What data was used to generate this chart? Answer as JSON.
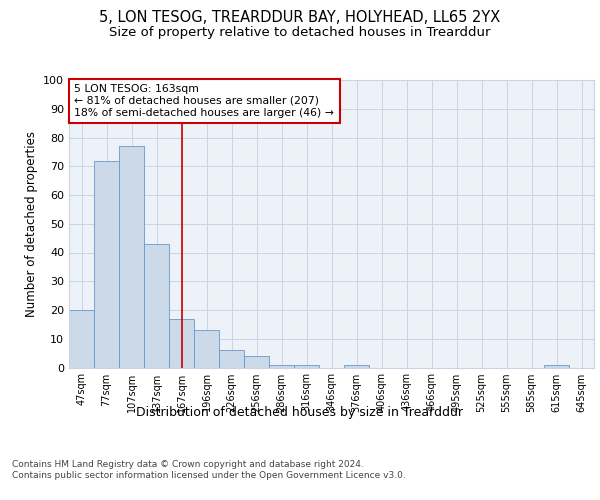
{
  "title": "5, LON TESOG, TREARDDUR BAY, HOLYHEAD, LL65 2YX",
  "subtitle": "Size of property relative to detached houses in Trearddur",
  "xlabel": "Distribution of detached houses by size in Trearddur",
  "ylabel": "Number of detached properties",
  "bar_labels": [
    "47sqm",
    "77sqm",
    "107sqm",
    "137sqm",
    "167sqm",
    "196sqm",
    "226sqm",
    "256sqm",
    "286sqm",
    "316sqm",
    "346sqm",
    "376sqm",
    "406sqm",
    "436sqm",
    "466sqm",
    "495sqm",
    "525sqm",
    "555sqm",
    "585sqm",
    "615sqm",
    "645sqm"
  ],
  "bar_values": [
    20,
    72,
    77,
    43,
    17,
    13,
    6,
    4,
    1,
    1,
    0,
    1,
    0,
    0,
    0,
    0,
    0,
    0,
    0,
    1,
    0
  ],
  "bar_color": "#ccd9e8",
  "bar_edge_color": "#6699cc",
  "vline_x": 4,
  "vline_color": "#cc0000",
  "annotation_line1": "5 LON TESOG: 163sqm",
  "annotation_line2": "← 81% of detached houses are smaller (207)",
  "annotation_line3": "18% of semi-detached houses are larger (46) →",
  "annotation_box_color": "#ffffff",
  "annotation_box_edge": "#cc0000",
  "ylim": [
    0,
    100
  ],
  "yticks": [
    0,
    10,
    20,
    30,
    40,
    50,
    60,
    70,
    80,
    90,
    100
  ],
  "grid_color": "#c8d4e4",
  "bg_color": "#edf2f8",
  "footer": "Contains HM Land Registry data © Crown copyright and database right 2024.\nContains public sector information licensed under the Open Government Licence v3.0.",
  "title_fontsize": 10.5,
  "subtitle_fontsize": 9.5,
  "xlabel_fontsize": 9,
  "ylabel_fontsize": 8.5,
  "footer_fontsize": 6.5
}
